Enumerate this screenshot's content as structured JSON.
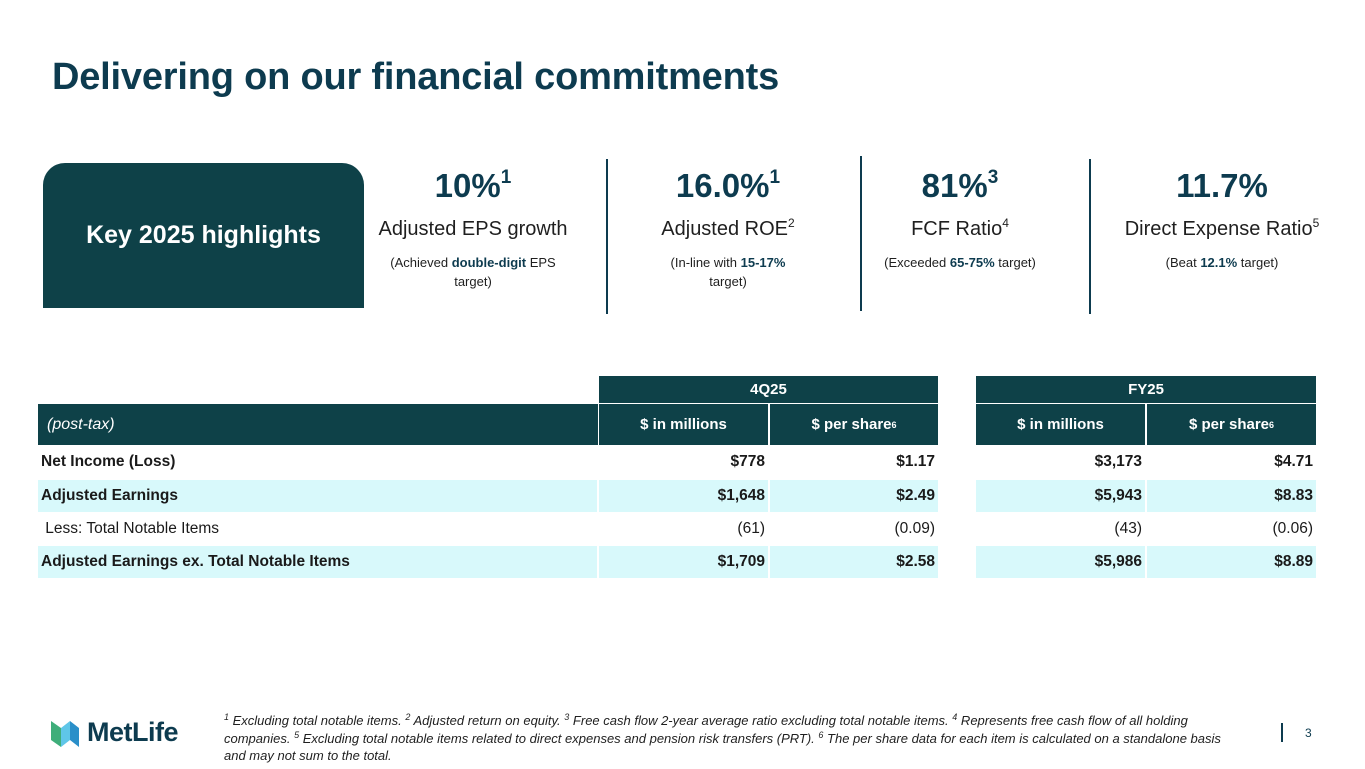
{
  "title": "Delivering on our financial commitments",
  "key_label": "Key 2025 highlights",
  "metrics": [
    {
      "value": "10%",
      "value_sup": "1",
      "label": "Adjusted EPS growth",
      "label_sup": "",
      "note_pre": "(Achieved ",
      "note_bold": "double-digit",
      "note_post": " EPS target)"
    },
    {
      "value": "16.0%",
      "value_sup": "1",
      "label": "Adjusted ROE",
      "label_sup": "2",
      "note_pre": "(In-line with ",
      "note_bold": "15-17%",
      "note_post": " target)"
    },
    {
      "value": "81%",
      "value_sup": "3",
      "label": "FCF Ratio",
      "label_sup": "4",
      "note_pre": "(Exceeded ",
      "note_bold": "65-75%",
      "note_post": " target)"
    },
    {
      "value": "11.7%",
      "value_sup": "",
      "label": "Direct Expense Ratio",
      "label_sup": "5",
      "note_pre": "(Beat ",
      "note_bold": "12.1%",
      "note_post": " target)"
    }
  ],
  "table": {
    "group_4q": "4Q25",
    "group_fy": "FY25",
    "row_header": "(post-tax)",
    "col_millions": "$ in millions",
    "col_per_share": "$ per share",
    "col_per_share_sup": "6",
    "rows": [
      {
        "label": "Net Income (Loss)",
        "q_mil": "$778",
        "q_ps": "$1.17",
        "fy_mil": "$3,173",
        "fy_ps": "$4.71"
      },
      {
        "label": "Adjusted Earnings",
        "q_mil": "$1,648",
        "q_ps": "$2.49",
        "fy_mil": "$5,943",
        "fy_ps": "$8.83"
      },
      {
        "label": " Less: Total Notable Items",
        "q_mil": "(61)",
        "q_ps": "(0.09)",
        "fy_mil": "(43)",
        "fy_ps": "(0.06)"
      },
      {
        "label": "Adjusted Earnings ex. Total Notable Items",
        "q_mil": "$1,709",
        "q_ps": "$2.58",
        "fy_mil": "$5,986",
        "fy_ps": "$8.89"
      }
    ]
  },
  "footnotes": [
    {
      "sup": "1",
      "text": " Excluding total notable items. "
    },
    {
      "sup": "2",
      "text": " Adjusted return on equity. "
    },
    {
      "sup": "3",
      "text": " Free cash flow 2-year average ratio excluding total notable items. "
    },
    {
      "sup": "4",
      "text": " Represents free cash flow of all holding companies. "
    },
    {
      "sup": "5",
      "text": " Excluding total notable items related to direct expenses and pension risk transfers (PRT). "
    },
    {
      "sup": "6",
      "text": " The per share data for each item is calculated on a standalone basis and may not sum to the total."
    }
  ],
  "logo_text": "MetLife",
  "page_number": "3",
  "colors": {
    "brand_dark": "#0d3b4f",
    "header_fill": "#0e4148",
    "row_shade": "#d8f9fb"
  }
}
